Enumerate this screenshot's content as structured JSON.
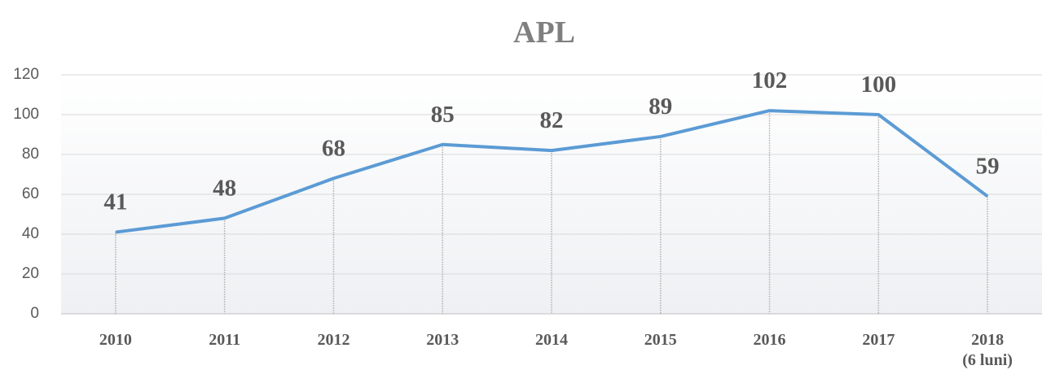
{
  "chart_data": {
    "type": "line",
    "title": "APL",
    "categories": [
      "2010",
      "2011",
      "2012",
      "2013",
      "2014",
      "2015",
      "2016",
      "2017",
      "2018\n(6 luni)"
    ],
    "series": [
      {
        "name": "APL",
        "color": "#5b9bd5",
        "values": [
          41,
          48,
          68,
          85,
          82,
          89,
          102,
          100,
          59
        ]
      }
    ],
    "ylim": [
      0,
      120
    ],
    "yticks": [
      0,
      20,
      40,
      60,
      80,
      100,
      120
    ],
    "grid": true
  }
}
